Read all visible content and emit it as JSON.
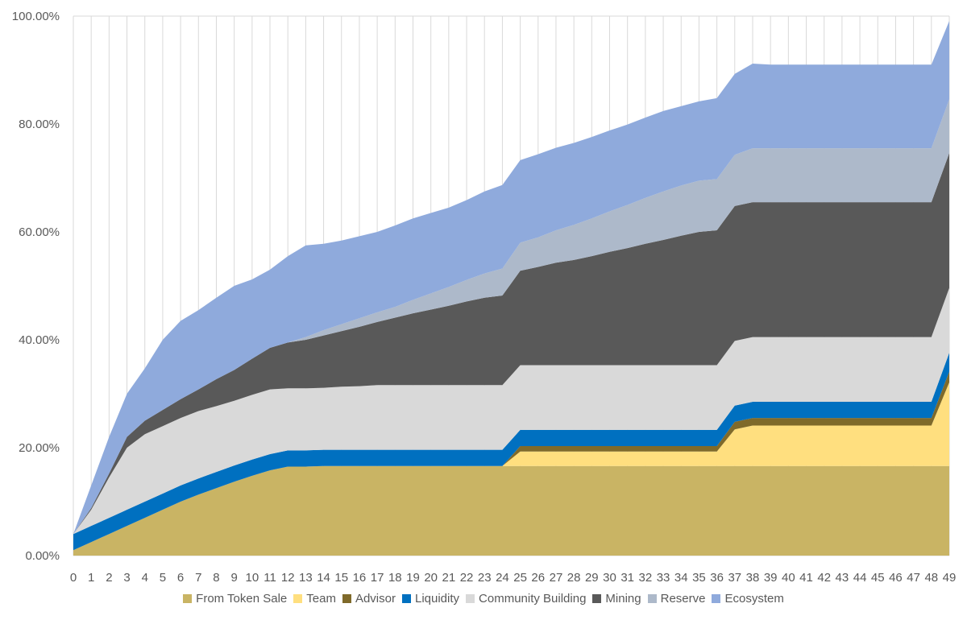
{
  "chart_data": {
    "type": "area",
    "stacked": true,
    "x": [
      0,
      1,
      2,
      3,
      4,
      5,
      6,
      7,
      8,
      9,
      10,
      11,
      12,
      13,
      14,
      15,
      16,
      17,
      18,
      19,
      20,
      21,
      22,
      23,
      24,
      25,
      26,
      27,
      28,
      29,
      30,
      31,
      32,
      33,
      34,
      35,
      36,
      37,
      38,
      39,
      40,
      41,
      42,
      43,
      44,
      45,
      46,
      47,
      48,
      49
    ],
    "ylim": [
      0,
      1
    ],
    "ytick_values": [
      0,
      0.2,
      0.4,
      0.6,
      0.8,
      1.0
    ],
    "ytick_labels": [
      "0.00%",
      "20.00%",
      "40.00%",
      "60.00%",
      "80.00%",
      "100.00%"
    ],
    "grid": "vertical",
    "legend_position": "bottom",
    "series": [
      {
        "name": "From Token Sale",
        "color": "#C9B464",
        "values": [
          0.01,
          0.025,
          0.04,
          0.055,
          0.07,
          0.085,
          0.1,
          0.113,
          0.125,
          0.137,
          0.148,
          0.158,
          0.165,
          0.165,
          0.166,
          0.166,
          0.166,
          0.166,
          0.166,
          0.166,
          0.166,
          0.166,
          0.166,
          0.166,
          0.166,
          0.166,
          0.166,
          0.166,
          0.166,
          0.166,
          0.166,
          0.166,
          0.166,
          0.166,
          0.166,
          0.166,
          0.166,
          0.166,
          0.166,
          0.166,
          0.166,
          0.166,
          0.166,
          0.166,
          0.166,
          0.166,
          0.166,
          0.166,
          0.166,
          0.166
        ]
      },
      {
        "name": "Team",
        "color": "#FFDF7F",
        "values": [
          0,
          0,
          0,
          0,
          0,
          0,
          0,
          0,
          0,
          0,
          0,
          0,
          0,
          0,
          0,
          0,
          0,
          0,
          0,
          0,
          0,
          0,
          0,
          0,
          0,
          0.027,
          0.027,
          0.027,
          0.027,
          0.027,
          0.027,
          0.027,
          0.027,
          0.027,
          0.027,
          0.027,
          0.027,
          0.068,
          0.075,
          0.075,
          0.075,
          0.075,
          0.075,
          0.075,
          0.075,
          0.075,
          0.075,
          0.075,
          0.075,
          0.155
        ]
      },
      {
        "name": "Advisor",
        "color": "#7F6A2A",
        "values": [
          0,
          0,
          0,
          0,
          0,
          0,
          0,
          0,
          0,
          0,
          0,
          0,
          0,
          0,
          0,
          0,
          0,
          0,
          0,
          0,
          0,
          0,
          0,
          0,
          0,
          0.01,
          0.01,
          0.01,
          0.01,
          0.01,
          0.01,
          0.01,
          0.01,
          0.01,
          0.01,
          0.01,
          0.01,
          0.014,
          0.014,
          0.014,
          0.014,
          0.014,
          0.014,
          0.014,
          0.014,
          0.014,
          0.014,
          0.014,
          0.014,
          0.02
        ]
      },
      {
        "name": "Liquidity",
        "color": "#0070C0",
        "values": [
          0.03,
          0.03,
          0.03,
          0.03,
          0.03,
          0.03,
          0.03,
          0.03,
          0.03,
          0.03,
          0.03,
          0.03,
          0.03,
          0.03,
          0.03,
          0.03,
          0.03,
          0.03,
          0.03,
          0.03,
          0.03,
          0.03,
          0.03,
          0.03,
          0.03,
          0.03,
          0.03,
          0.03,
          0.03,
          0.03,
          0.03,
          0.03,
          0.03,
          0.03,
          0.03,
          0.03,
          0.03,
          0.03,
          0.03,
          0.03,
          0.03,
          0.03,
          0.03,
          0.03,
          0.03,
          0.03,
          0.03,
          0.03,
          0.03,
          0.035
        ]
      },
      {
        "name": "Community Building",
        "color": "#D9D9D9",
        "values": [
          0,
          0.03,
          0.075,
          0.115,
          0.125,
          0.125,
          0.125,
          0.125,
          0.122,
          0.12,
          0.12,
          0.12,
          0.115,
          0.115,
          0.115,
          0.117,
          0.118,
          0.12,
          0.12,
          0.12,
          0.12,
          0.12,
          0.12,
          0.12,
          0.12,
          0.12,
          0.12,
          0.12,
          0.12,
          0.12,
          0.12,
          0.12,
          0.12,
          0.12,
          0.12,
          0.12,
          0.12,
          0.12,
          0.12,
          0.12,
          0.12,
          0.12,
          0.12,
          0.12,
          0.12,
          0.12,
          0.12,
          0.12,
          0.12,
          0.12
        ]
      },
      {
        "name": "Mining",
        "color": "#595959",
        "values": [
          0,
          0.003,
          0.007,
          0.02,
          0.025,
          0.03,
          0.035,
          0.04,
          0.05,
          0.057,
          0.067,
          0.077,
          0.085,
          0.09,
          0.097,
          0.103,
          0.11,
          0.117,
          0.125,
          0.133,
          0.14,
          0.147,
          0.155,
          0.162,
          0.166,
          0.175,
          0.182,
          0.19,
          0.195,
          0.202,
          0.21,
          0.217,
          0.225,
          0.232,
          0.24,
          0.247,
          0.25,
          0.25,
          0.25,
          0.25,
          0.25,
          0.25,
          0.25,
          0.25,
          0.25,
          0.25,
          0.25,
          0.25,
          0.25,
          0.25
        ]
      },
      {
        "name": "Reserve",
        "color": "#ADB9CA",
        "values": [
          0,
          0,
          0,
          0,
          0,
          0,
          0,
          0,
          0,
          0,
          0,
          0,
          0,
          0.005,
          0.01,
          0.013,
          0.016,
          0.018,
          0.02,
          0.025,
          0.03,
          0.035,
          0.04,
          0.045,
          0.05,
          0.052,
          0.055,
          0.06,
          0.065,
          0.07,
          0.075,
          0.08,
          0.085,
          0.09,
          0.093,
          0.095,
          0.095,
          0.095,
          0.1,
          0.1,
          0.1,
          0.1,
          0.1,
          0.1,
          0.1,
          0.1,
          0.1,
          0.1,
          0.1,
          0.1
        ]
      },
      {
        "name": "Ecosystem",
        "color": "#8FAADC",
        "values": [
          0,
          0.042,
          0.068,
          0.08,
          0.097,
          0.13,
          0.145,
          0.147,
          0.151,
          0.156,
          0.147,
          0.145,
          0.16,
          0.17,
          0.16,
          0.155,
          0.152,
          0.149,
          0.151,
          0.151,
          0.149,
          0.147,
          0.148,
          0.152,
          0.155,
          0.153,
          0.154,
          0.153,
          0.152,
          0.151,
          0.15,
          0.149,
          0.149,
          0.149,
          0.147,
          0.147,
          0.15,
          0.15,
          0.157,
          0.155,
          0.155,
          0.155,
          0.155,
          0.155,
          0.155,
          0.155,
          0.155,
          0.155,
          0.155,
          0.145
        ]
      }
    ]
  }
}
